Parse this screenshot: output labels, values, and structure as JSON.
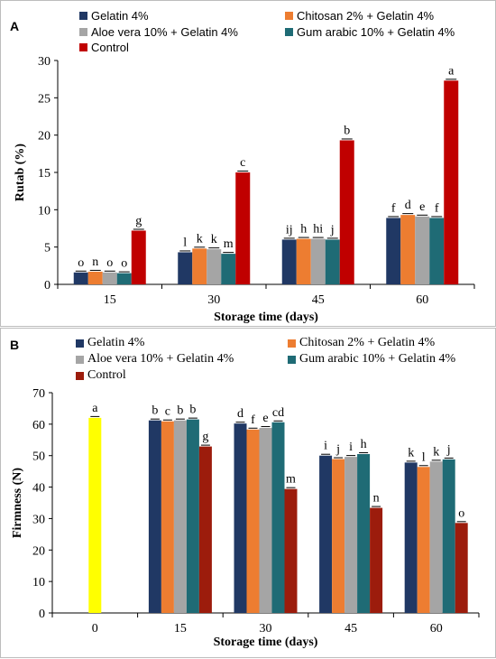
{
  "chart_data": [
    {
      "type": "bar",
      "panel_label": "A",
      "categories": [
        "15",
        "30",
        "45",
        "60"
      ],
      "xlabel": "Storage time (days)",
      "ylabel": "Rutab (%)",
      "ylim": [
        0,
        30
      ],
      "yticks": [
        0,
        5,
        10,
        15,
        20,
        25,
        30
      ],
      "grid": false,
      "legend_position": "top",
      "series": [
        {
          "name": "Gelatin 4%",
          "color": "#203864",
          "values": [
            1.6,
            4.3,
            6.0,
            8.9
          ],
          "letters": [
            "o",
            "l",
            "ij",
            "f"
          ]
        },
        {
          "name": "Chitosan 2% + Gelatin 4%",
          "color": "#ed7d31",
          "values": [
            1.7,
            4.8,
            6.1,
            9.3
          ],
          "letters": [
            "n",
            "k",
            "h",
            "d"
          ]
        },
        {
          "name": "Aloe vera 10% + Gelatin 4%",
          "color": "#a5a5a5",
          "values": [
            1.6,
            4.7,
            6.1,
            9.1
          ],
          "letters": [
            "o",
            "k",
            "hi",
            "e"
          ]
        },
        {
          "name": "Gum arabic 10% + Gelatin 4%",
          "color": "#1f6b75",
          "values": [
            1.5,
            4.1,
            6.0,
            8.9
          ],
          "letters": [
            "o",
            "m",
            "j",
            "f"
          ]
        },
        {
          "name": "Control",
          "color": "#c00000",
          "values": [
            7.2,
            15.0,
            19.3,
            27.3
          ],
          "letters": [
            "g",
            "c",
            "b",
            "a"
          ]
        }
      ]
    },
    {
      "type": "bar",
      "panel_label": "B",
      "categories": [
        "0",
        "15",
        "30",
        "45",
        "60"
      ],
      "xlabel": "Storage time (days)",
      "ylabel": "Firmness (N)",
      "ylim": [
        0,
        70
      ],
      "yticks": [
        0,
        10,
        20,
        30,
        40,
        50,
        60,
        70
      ],
      "grid": false,
      "legend_position": "top",
      "initial": {
        "category": "0",
        "value": 62.0,
        "letter": "a",
        "color": "#ffff00"
      },
      "series": [
        {
          "name": "Gelatin 4%",
          "color": "#203864",
          "values": [
            null,
            61.2,
            60.2,
            50.0,
            47.8
          ],
          "letters": [
            "",
            "b",
            "d",
            "i",
            "k"
          ]
        },
        {
          "name": "Chitosan 2% + Gelatin 4%",
          "color": "#ed7d31",
          "values": [
            null,
            60.9,
            58.3,
            48.9,
            46.4
          ],
          "letters": [
            "",
            "c",
            "f",
            "j",
            "l"
          ]
        },
        {
          "name": "Aloe vera 10% + Gelatin 4%",
          "color": "#a5a5a5",
          "values": [
            null,
            61.2,
            58.8,
            49.6,
            48.1
          ],
          "letters": [
            "",
            "b",
            "e",
            "i",
            "k"
          ]
        },
        {
          "name": "Gum arabic 10% + Gelatin 4%",
          "color": "#1f6b75",
          "values": [
            null,
            61.5,
            60.6,
            50.5,
            48.8
          ],
          "letters": [
            "",
            "b",
            "cd",
            "h",
            "j"
          ]
        },
        {
          "name": "Control",
          "color": "#9c1c0c",
          "values": [
            null,
            52.9,
            39.4,
            33.4,
            28.6
          ],
          "letters": [
            "",
            "g",
            "m",
            "n",
            "o"
          ]
        }
      ]
    }
  ]
}
